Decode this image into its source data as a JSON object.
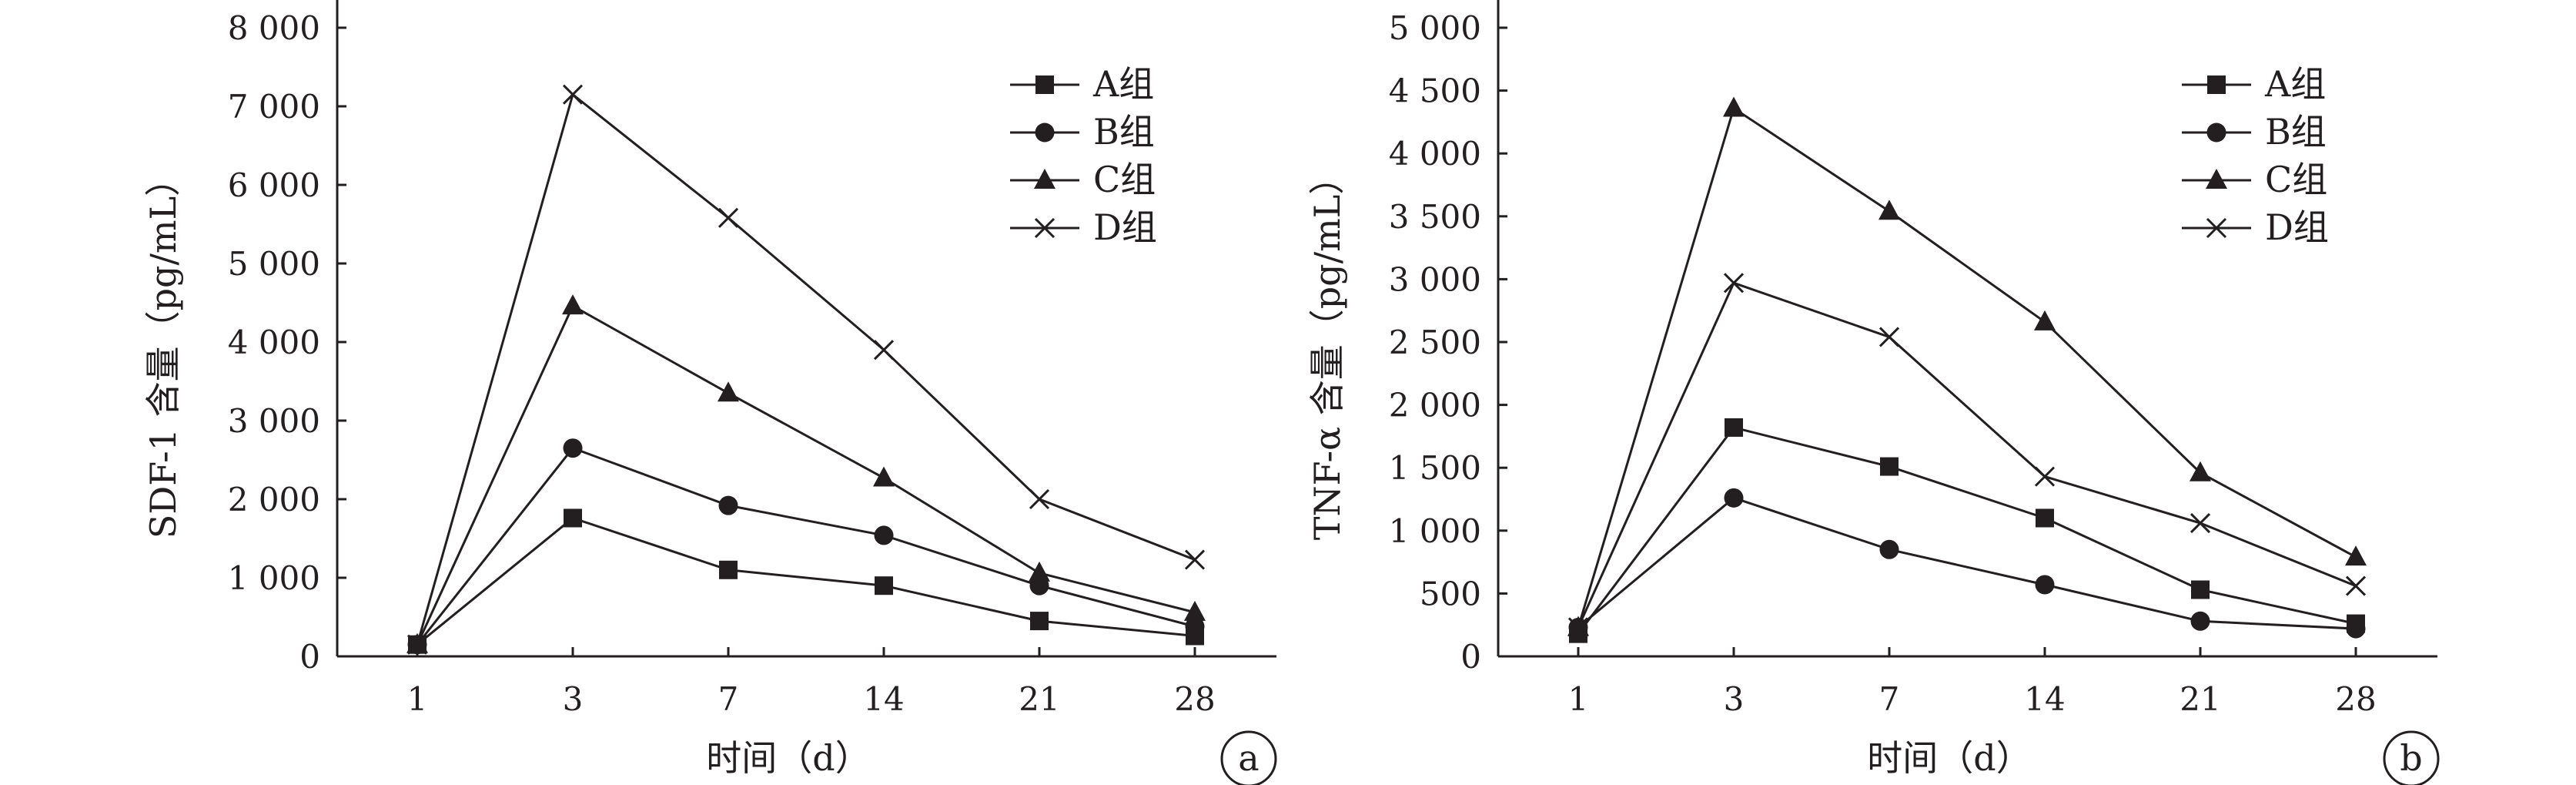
{
  "chart_data": [
    {
      "type": "line",
      "panel_label": "a",
      "xlabel": "时间（d）",
      "ylabel": "SDF-1 含量（pg/mL）",
      "categories": [
        "1",
        "3",
        "7",
        "14",
        "21",
        "28"
      ],
      "ylim": [
        0,
        8000
      ],
      "yticks": [
        0,
        1000,
        2000,
        3000,
        4000,
        5000,
        6000,
        7000,
        8000
      ],
      "ytick_labels": [
        "0",
        "1 000",
        "2 000",
        "3 000",
        "4 000",
        "5 000",
        "6 000",
        "7 000",
        "8 000"
      ],
      "grid": false,
      "legend_position": "top-right",
      "series": [
        {
          "name": "A组",
          "marker": "square",
          "values": [
            150,
            1760,
            1100,
            900,
            450,
            260
          ]
        },
        {
          "name": "B组",
          "marker": "circle",
          "values": [
            150,
            2650,
            1920,
            1540,
            900,
            380
          ]
        },
        {
          "name": "C组",
          "marker": "triangle",
          "values": [
            150,
            4460,
            3350,
            2270,
            1060,
            560
          ]
        },
        {
          "name": "D组",
          "marker": "cross",
          "values": [
            150,
            7150,
            5580,
            3900,
            2000,
            1230
          ]
        }
      ]
    },
    {
      "type": "line",
      "panel_label": "b",
      "xlabel": "时间（d）",
      "ylabel": "TNF-α 含量（pg/mL）",
      "categories": [
        "1",
        "3",
        "7",
        "14",
        "21",
        "28"
      ],
      "ylim": [
        0,
        5000
      ],
      "yticks": [
        0,
        500,
        1000,
        1500,
        2000,
        2500,
        3000,
        3500,
        4000,
        4500,
        5000
      ],
      "ytick_labels": [
        "0",
        "500",
        "1 000",
        "1 500",
        "2 000",
        "2 500",
        "3 000",
        "3 500",
        "4 000",
        "4 500",
        "5 000"
      ],
      "grid": false,
      "legend_position": "top-right",
      "series": [
        {
          "name": "A组",
          "marker": "square",
          "values": [
            180,
            1820,
            1510,
            1100,
            530,
            260
          ]
        },
        {
          "name": "B组",
          "marker": "circle",
          "values": [
            230,
            1260,
            850,
            570,
            280,
            220
          ]
        },
        {
          "name": "C组",
          "marker": "triangle",
          "values": [
            230,
            4360,
            3540,
            2660,
            1460,
            790
          ]
        },
        {
          "name": "D组",
          "marker": "cross",
          "values": [
            230,
            2970,
            2540,
            1430,
            1060,
            560
          ]
        }
      ]
    }
  ]
}
